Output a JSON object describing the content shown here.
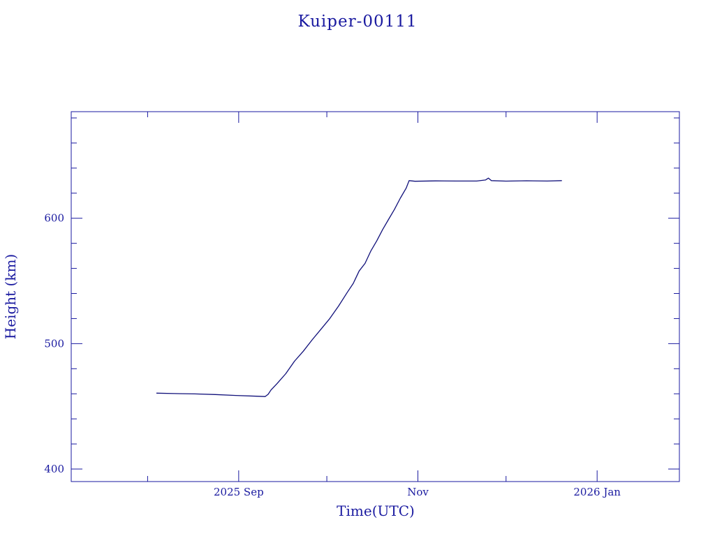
{
  "colors": {
    "ink": "#1a1aa0",
    "line": "#10107a",
    "background": "#ffffff"
  },
  "chart_data": {
    "type": "line",
    "title": "Kuiper-00111",
    "xlabel": "Time(UTC)",
    "ylabel": "Height (km)",
    "x_type": "date",
    "xlim": [
      "2025-07-06",
      "2026-01-29"
    ],
    "ylim": [
      390,
      685
    ],
    "x_ticks": [
      {
        "date": "2025-09-01",
        "label": "2025 Sep"
      },
      {
        "date": "2025-11-01",
        "label": "Nov"
      },
      {
        "date": "2026-01-01",
        "label": "2026 Jan"
      }
    ],
    "y_ticks": [
      {
        "value": 400,
        "label": "400"
      },
      {
        "value": 500,
        "label": "500"
      },
      {
        "value": 600,
        "label": "600"
      }
    ],
    "grid": false,
    "legend": "none",
    "series": [
      {
        "points": [
          [
            "2025-08-04",
            460.5
          ],
          [
            "2025-08-10",
            460.2
          ],
          [
            "2025-08-17",
            459.9
          ],
          [
            "2025-08-24",
            459.4
          ],
          [
            "2025-08-31",
            458.7
          ],
          [
            "2025-09-07",
            458.1
          ],
          [
            "2025-09-10",
            457.8
          ],
          [
            "2025-09-11",
            459.5
          ],
          [
            "2025-09-12",
            463.0
          ],
          [
            "2025-09-14",
            468.0
          ],
          [
            "2025-09-17",
            476.0
          ],
          [
            "2025-09-20",
            486.0
          ],
          [
            "2025-09-23",
            494.0
          ],
          [
            "2025-09-26",
            503.0
          ],
          [
            "2025-09-29",
            511.5
          ],
          [
            "2025-10-02",
            520.0
          ],
          [
            "2025-10-05",
            530.0
          ],
          [
            "2025-10-08",
            541.0
          ],
          [
            "2025-10-10",
            548.0
          ],
          [
            "2025-10-12",
            558.0
          ],
          [
            "2025-10-14",
            564.0
          ],
          [
            "2025-10-16",
            574.0
          ],
          [
            "2025-10-18",
            582.0
          ],
          [
            "2025-10-20",
            591.0
          ],
          [
            "2025-10-22",
            599.0
          ],
          [
            "2025-10-24",
            607.0
          ],
          [
            "2025-10-26",
            616.0
          ],
          [
            "2025-10-28",
            624.0
          ],
          [
            "2025-10-29",
            630.0
          ],
          [
            "2025-10-31",
            629.5
          ],
          [
            "2025-11-07",
            629.8
          ],
          [
            "2025-11-14",
            629.7
          ],
          [
            "2025-11-21",
            629.7
          ],
          [
            "2025-11-24",
            630.5
          ],
          [
            "2025-11-25",
            632.0
          ],
          [
            "2025-11-26",
            630.0
          ],
          [
            "2025-12-01",
            629.6
          ],
          [
            "2025-12-08",
            629.9
          ],
          [
            "2025-12-15",
            629.7
          ],
          [
            "2025-12-20",
            630.0
          ]
        ]
      }
    ]
  }
}
